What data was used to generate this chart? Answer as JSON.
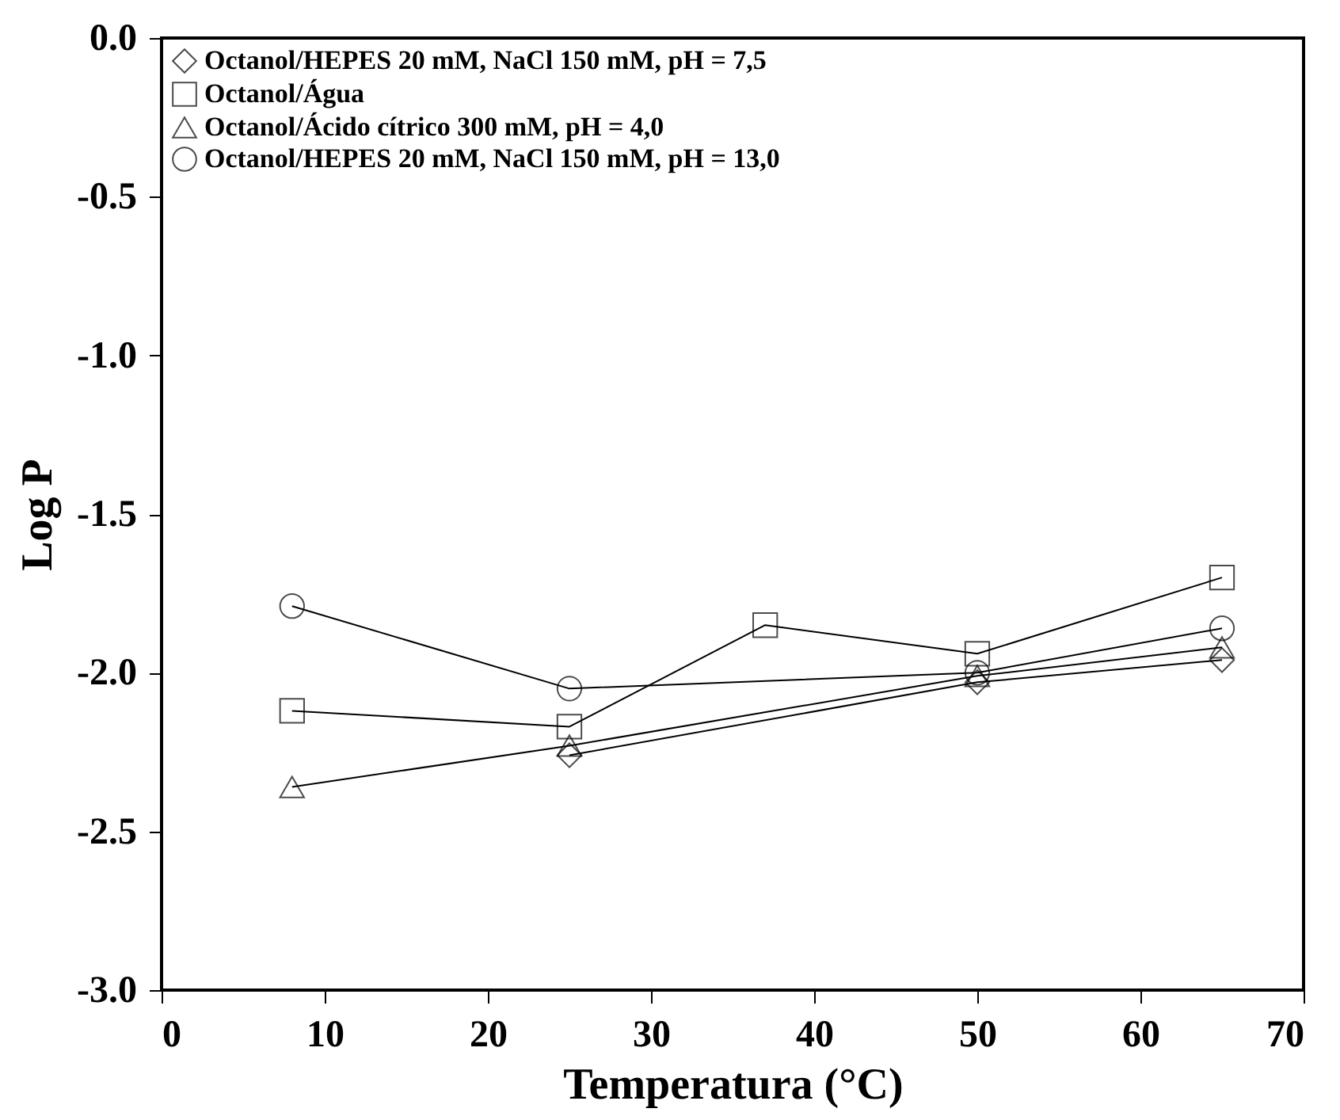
{
  "chart_data": {
    "type": "line",
    "xlabel": "Temperatura (°C)",
    "ylabel": "Log P",
    "xlim": [
      0,
      70
    ],
    "xticks": [
      0,
      10,
      20,
      30,
      40,
      50,
      60,
      70
    ],
    "ylim": [
      -3.0,
      0.0
    ],
    "yticks": [
      {
        "value": -3.0,
        "label": "-3.0"
      },
      {
        "value": -2.5,
        "label": "-2.5"
      },
      {
        "value": -2.0,
        "label": "-2.0"
      },
      {
        "value": -1.5,
        "label": "-1.5"
      },
      {
        "value": -1.0,
        "label": "-1.0"
      },
      {
        "value": -0.5,
        "label": "-0.5"
      },
      {
        "value": 0.0,
        "label": "0.0"
      }
    ],
    "grid": false,
    "legend": "top left",
    "line_style": "solid",
    "series": [
      {
        "name": "Octanol/HEPES 20 mM, NaCl 150 mM, pH = 7,5",
        "color": "#000000",
        "marker": "diamond",
        "x": [
          25,
          50,
          65
        ],
        "values": [
          -2.26,
          -2.03,
          -1.96
        ]
      },
      {
        "name": "Octanol/Água",
        "color": "#000000",
        "marker": "square",
        "x": [
          8,
          25,
          37,
          50,
          65
        ],
        "values": [
          -2.12,
          -2.17,
          -1.85,
          -1.94,
          -1.7
        ]
      },
      {
        "name": "Octanol/Ácido cítrico 300 mM, pH = 4,0",
        "color": "#000000",
        "marker": "triangle",
        "x": [
          8,
          25,
          50,
          65
        ],
        "values": [
          -2.36,
          -2.23,
          -2.01,
          -1.92
        ]
      },
      {
        "name": "Octanol/HEPES 20 mM, NaCl 150 mM, pH = 13,0",
        "color": "#000000",
        "marker": "circle",
        "x": [
          8,
          25,
          50,
          65
        ],
        "values": [
          -1.79,
          -2.05,
          -2.0,
          -1.86
        ]
      }
    ]
  }
}
